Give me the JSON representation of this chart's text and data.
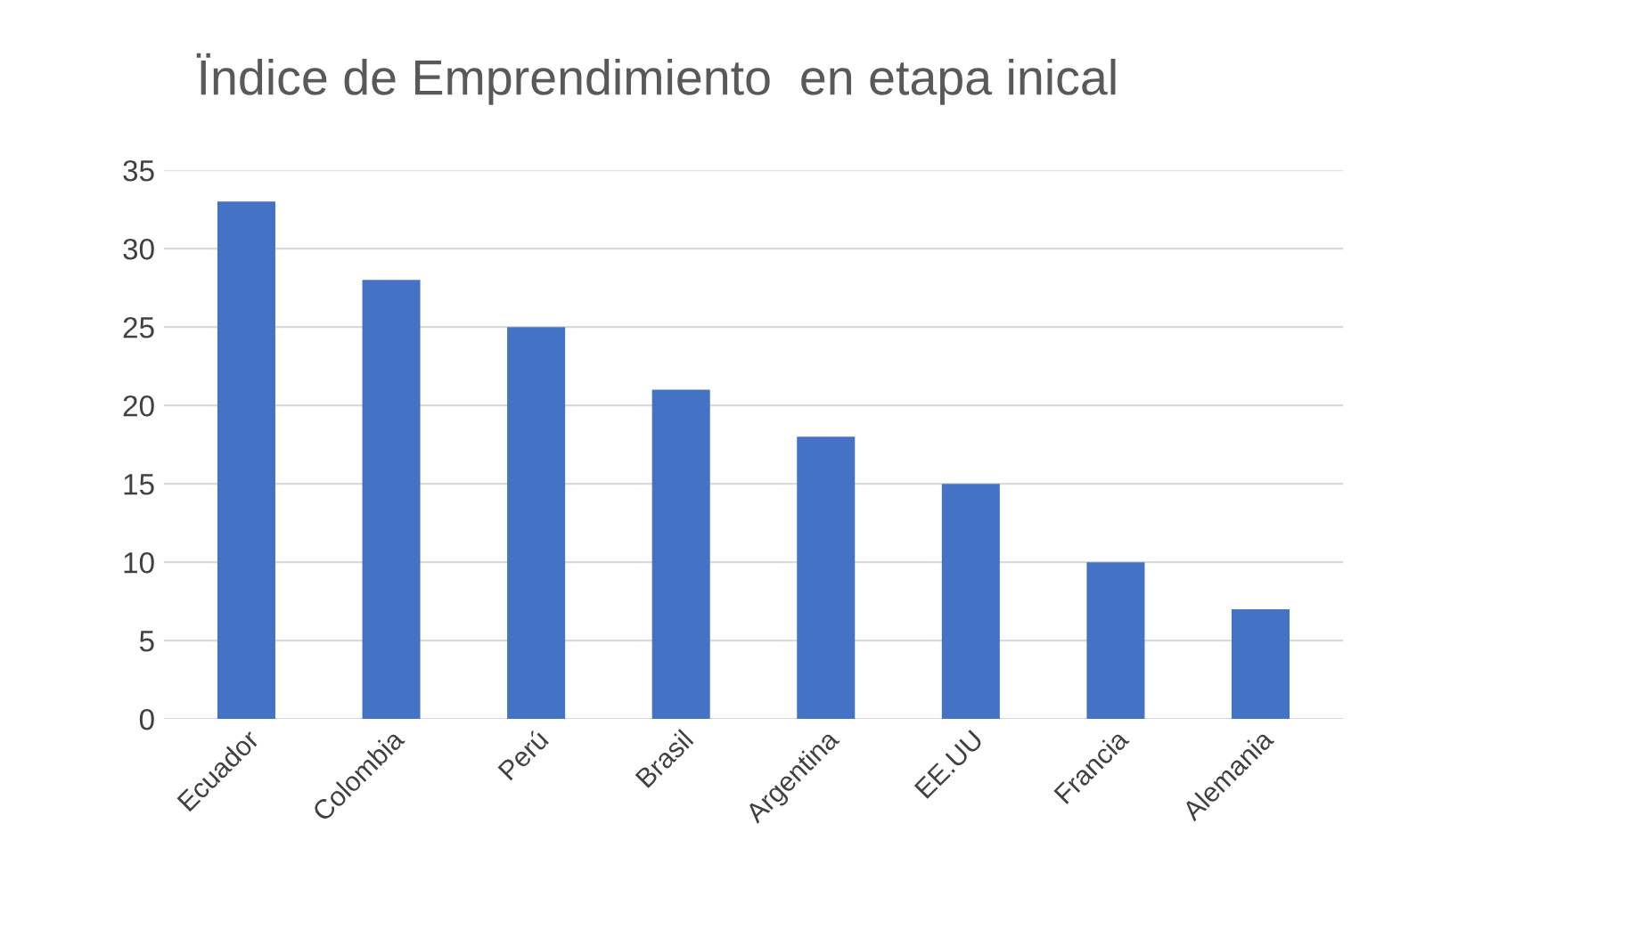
{
  "chart_data": {
    "type": "bar",
    "title": "Ïndice de Emprendimiento  en etapa inical",
    "categories": [
      "Ecuador",
      "Colombia",
      "Perú",
      "Brasil",
      "Argentina",
      "EE.UU",
      "Francia",
      "Alemania"
    ],
    "values": [
      33,
      28,
      25,
      21,
      18,
      15,
      10,
      7
    ],
    "color": "#4472c4",
    "ylim": [
      0,
      35
    ],
    "yticks": [
      0,
      5,
      10,
      15,
      20,
      25,
      30,
      35
    ],
    "grid": "y",
    "legend": false
  }
}
